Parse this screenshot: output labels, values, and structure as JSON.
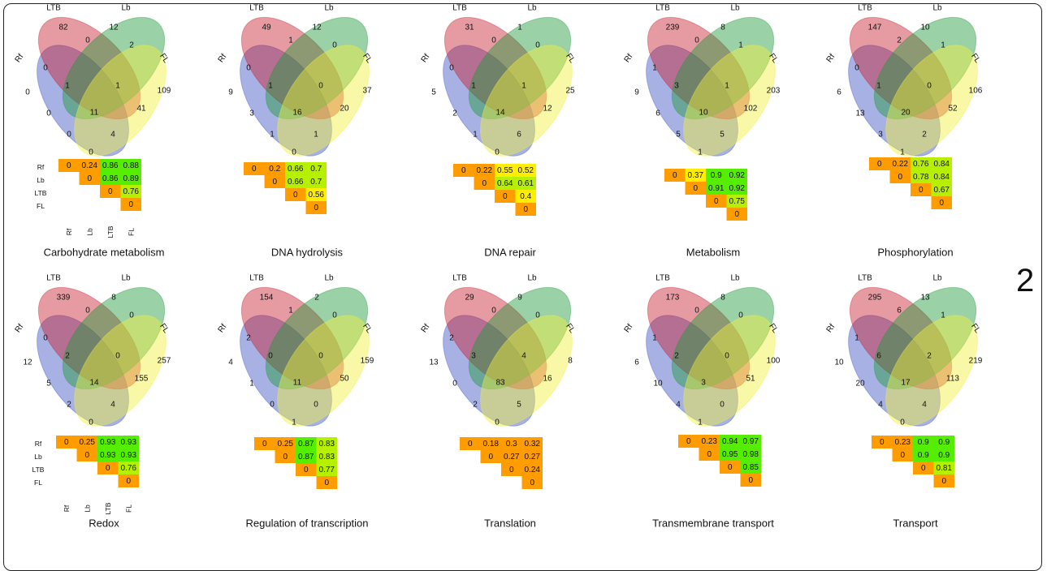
{
  "page_number": "2",
  "set_labels": [
    "Rf",
    "LTB",
    "Lb",
    "FL"
  ],
  "matrix_labels": [
    "Rf",
    "Lb",
    "LTB",
    "FL"
  ],
  "colors": {
    "set_fill": [
      "#3b53c4",
      "#c8202f",
      "#1f9a3a",
      "#f2f03c"
    ],
    "cell_low": "#ff9c00",
    "cell_mid": "#ffee00",
    "cell_high": "#55ee00",
    "frame": "#222222"
  },
  "panels": [
    {
      "title": "Carbohydrate metabolism",
      "show_matrix_labels": true,
      "venn": [
        "0",
        "82",
        "12",
        "109",
        "0",
        "0",
        "2",
        "1",
        "1",
        "41",
        "0",
        "0",
        "11",
        "4",
        "0"
      ],
      "matrix": [
        [
          "0",
          "0.24",
          "0.86",
          "0.88"
        ],
        [
          "0",
          "0.86",
          "0.89"
        ],
        [
          "0",
          "0.76"
        ],
        [
          "0"
        ]
      ]
    },
    {
      "title": "DNA hydrolysis",
      "show_matrix_labels": false,
      "venn": [
        "9",
        "49",
        "12",
        "37",
        "0",
        "1",
        "0",
        "1",
        "0",
        "20",
        "3",
        "1",
        "16",
        "1",
        "0"
      ],
      "matrix": [
        [
          "0",
          "0.2",
          "0.66",
          "0.7"
        ],
        [
          "0",
          "0.66",
          "0.7"
        ],
        [
          "0",
          "0.56"
        ],
        [
          "0"
        ]
      ]
    },
    {
      "title": "DNA repair",
      "show_matrix_labels": false,
      "venn": [
        "5",
        "31",
        "1",
        "25",
        "0",
        "0",
        "0",
        "1",
        "1",
        "12",
        "2",
        "1",
        "14",
        "6",
        "0"
      ],
      "matrix": [
        [
          "0",
          "0.22",
          "0.55",
          "0.52"
        ],
        [
          "0",
          "0.64",
          "0.61"
        ],
        [
          "0",
          "0.4"
        ],
        [
          "0"
        ]
      ]
    },
    {
      "title": "Metabolism",
      "show_matrix_labels": false,
      "venn": [
        "9",
        "239",
        "8",
        "203",
        "1",
        "0",
        "1",
        "3",
        "1",
        "102",
        "6",
        "5",
        "10",
        "5",
        "1"
      ],
      "matrix": [
        [
          "0",
          "0.37",
          "0.9",
          "0.92"
        ],
        [
          "0",
          "0.91",
          "0.92"
        ],
        [
          "0",
          "0.75"
        ],
        [
          "0"
        ]
      ]
    },
    {
      "title": "Phosphorylation",
      "show_matrix_labels": false,
      "venn": [
        "6",
        "147",
        "10",
        "106",
        "0",
        "2",
        "1",
        "1",
        "0",
        "52",
        "13",
        "3",
        "20",
        "2",
        "1"
      ],
      "matrix": [
        [
          "0",
          "0.22",
          "0.76",
          "0.84"
        ],
        [
          "0",
          "0.78",
          "0.84"
        ],
        [
          "0",
          "0.67"
        ],
        [
          "0"
        ]
      ]
    },
    {
      "title": "Redox",
      "show_matrix_labels": true,
      "venn": [
        "12",
        "339",
        "8",
        "257",
        "0",
        "0",
        "0",
        "2",
        "0",
        "155",
        "5",
        "2",
        "14",
        "4",
        "0"
      ],
      "matrix": [
        [
          "0",
          "0.25",
          "0.93",
          "0.93"
        ],
        [
          "0",
          "0.93",
          "0.93"
        ],
        [
          "0",
          "0.76"
        ],
        [
          "0"
        ]
      ]
    },
    {
      "title": "Regulation of transcription",
      "show_matrix_labels": false,
      "venn": [
        "4",
        "154",
        "2",
        "159",
        "2",
        "1",
        "0",
        "0",
        "0",
        "50",
        "1",
        "0",
        "11",
        "0",
        "1"
      ],
      "matrix": [
        [
          "0",
          "0.25",
          "0.87",
          "0.83"
        ],
        [
          "0",
          "0.87",
          "0.83"
        ],
        [
          "0",
          "0.77"
        ],
        [
          "0"
        ]
      ]
    },
    {
      "title": "Translation",
      "show_matrix_labels": false,
      "venn": [
        "13",
        "29",
        "9",
        "8",
        "2",
        "0",
        "0",
        "3",
        "4",
        "16",
        "0",
        "2",
        "83",
        "5",
        "0"
      ],
      "matrix": [
        [
          "0",
          "0.18",
          "0.3",
          "0.32"
        ],
        [
          "0",
          "0.27",
          "0.27"
        ],
        [
          "0",
          "0.24"
        ],
        [
          "0"
        ]
      ]
    },
    {
      "title": "Transmembrane transport",
      "show_matrix_labels": false,
      "venn": [
        "6",
        "173",
        "8",
        "100",
        "1",
        "0",
        "0",
        "2",
        "0",
        "51",
        "10",
        "4",
        "3",
        "0",
        "1"
      ],
      "matrix": [
        [
          "0",
          "0.23",
          "0.94",
          "0.97"
        ],
        [
          "0",
          "0.95",
          "0.98"
        ],
        [
          "0",
          "0.85"
        ],
        [
          "0"
        ]
      ]
    },
    {
      "title": "Transport",
      "show_matrix_labels": false,
      "venn": [
        "10",
        "295",
        "13",
        "219",
        "1",
        "6",
        "1",
        "6",
        "2",
        "113",
        "20",
        "4",
        "17",
        "4",
        "0"
      ],
      "matrix": [
        [
          "0",
          "0.23",
          "0.9",
          "0.9"
        ],
        [
          "0",
          "0.9",
          "0.9"
        ],
        [
          "0",
          "0.81"
        ],
        [
          "0"
        ]
      ]
    }
  ]
}
